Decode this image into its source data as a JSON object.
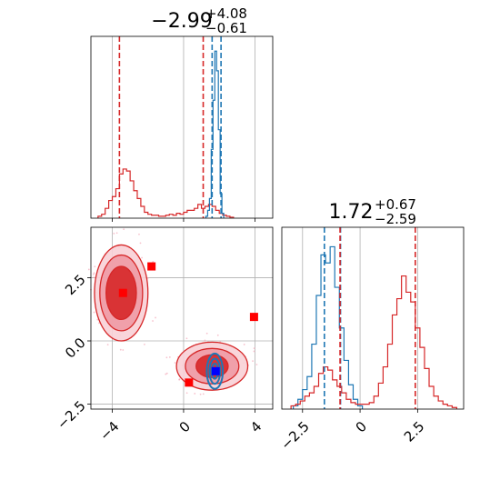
{
  "chart_data": [
    {
      "type": "histogram",
      "panel": "top-left",
      "title_value": "−2.99",
      "title_plus": "+4.08",
      "title_minus": "−0.61",
      "xlim": [
        -5.2,
        5
      ],
      "grid": true,
      "x_ticks": [
        -4,
        0,
        4
      ],
      "series": [
        {
          "color": "#d62728",
          "bins": [
            -4.7,
            -4.5,
            -4.3,
            -4.1,
            -3.9,
            -3.7,
            -3.5,
            -3.3,
            -3.1,
            -2.9,
            -2.7,
            -2.5,
            -2.3,
            -2.1,
            -1.9,
            -1.7,
            -1.5,
            -1.3,
            -1.1,
            -0.9,
            -0.7,
            -0.5,
            -0.3,
            -0.1,
            0.1,
            0.3,
            0.5,
            0.7,
            0.9,
            1.1,
            1.3,
            1.5,
            1.7,
            1.9,
            2.1,
            2.3,
            2.5,
            2.7
          ],
          "values": [
            2,
            4,
            10,
            18,
            22,
            30,
            45,
            50,
            48,
            38,
            28,
            20,
            12,
            6,
            4,
            3,
            3,
            2,
            2,
            3,
            4,
            3,
            5,
            4,
            6,
            8,
            8,
            10,
            14,
            10,
            12,
            14,
            12,
            8,
            5,
            3,
            2,
            1
          ]
        },
        {
          "color": "#1f77b4",
          "bins": [
            1.3,
            1.4,
            1.5,
            1.6,
            1.7,
            1.8,
            1.9,
            2.0,
            2.1,
            2.2
          ],
          "values": [
            2,
            8,
            20,
            70,
            120,
            170,
            150,
            90,
            25,
            5
          ]
        }
      ],
      "quantiles": [
        {
          "color": "#d62728",
          "values": [
            -3.6,
            1.1
          ]
        },
        {
          "color": "#1f77b4",
          "values": [
            1.6,
            2.1
          ]
        }
      ],
      "ylim": [
        0,
        185
      ]
    },
    {
      "type": "scatter-contour",
      "panel": "bottom-left",
      "xlim": [
        -5.2,
        5
      ],
      "ylim": [
        -2.7,
        4.5
      ],
      "x_ticks": [
        -4,
        0,
        4
      ],
      "y_ticks": [
        -2.5,
        0.0,
        2.5
      ],
      "grid": true,
      "contours": [
        {
          "color": "#d62728",
          "center": [
            -3.5,
            1.9
          ],
          "radii": [
            [
              1.5,
              1.9
            ],
            [
              1.2,
              1.5
            ],
            [
              0.85,
              1.05
            ]
          ]
        },
        {
          "color": "#d62728",
          "center": [
            1.6,
            -1.0
          ],
          "radii": [
            [
              2.0,
              0.95
            ],
            [
              1.5,
              0.7
            ],
            [
              0.9,
              0.45
            ]
          ]
        },
        {
          "color": "#1f77b4",
          "center": [
            1.75,
            -1.2
          ],
          "radii": [
            [
              0.45,
              0.7
            ],
            [
              0.3,
              0.5
            ],
            [
              0.18,
              0.3
            ]
          ]
        }
      ],
      "markers": [
        {
          "color": "#ff0000",
          "x": -3.4,
          "y": 1.9
        },
        {
          "color": "#ff0000",
          "x": -1.8,
          "y": 2.95
        },
        {
          "color": "#ff0000",
          "x": 3.95,
          "y": 0.95
        },
        {
          "color": "#ff0000",
          "x": 0.3,
          "y": -1.65
        },
        {
          "color": "#0000ff",
          "x": 1.8,
          "y": -1.2
        }
      ]
    },
    {
      "type": "histogram",
      "panel": "bottom-right",
      "title_value": "1.72",
      "title_plus": "+0.67",
      "title_minus": "−2.59",
      "xlim": [
        -3.4,
        4.5
      ],
      "x_ticks": [
        -2.5,
        0.0,
        2.5
      ],
      "grid": true,
      "series": [
        {
          "color": "#1f77b4",
          "bins": [
            -2.8,
            -2.6,
            -2.4,
            -2.2,
            -2.0,
            -1.8,
            -1.6,
            -1.4,
            -1.2,
            -1.0,
            -0.8,
            -0.6,
            -0.4,
            -0.2,
            0.0
          ],
          "values": [
            2,
            6,
            12,
            20,
            40,
            70,
            95,
            90,
            100,
            75,
            50,
            30,
            15,
            6,
            2
          ]
        },
        {
          "color": "#d62728",
          "bins": [
            -2.9,
            -2.7,
            -2.5,
            -2.3,
            -2.1,
            -1.9,
            -1.7,
            -1.5,
            -1.3,
            -1.1,
            -0.9,
            -0.7,
            -0.5,
            -0.3,
            -0.1,
            0.1,
            0.3,
            0.5,
            0.7,
            0.9,
            1.1,
            1.3,
            1.5,
            1.7,
            1.9,
            2.1,
            2.3,
            2.5,
            2.7,
            2.9,
            3.1,
            3.3,
            3.5,
            3.7,
            3.9,
            4.1
          ],
          "values": [
            2,
            3,
            5,
            8,
            10,
            14,
            22,
            26,
            24,
            18,
            14,
            10,
            6,
            4,
            3,
            3,
            3,
            4,
            8,
            16,
            26,
            40,
            58,
            68,
            82,
            72,
            66,
            50,
            38,
            25,
            14,
            8,
            5,
            3,
            2,
            1
          ]
        }
      ],
      "quantiles": [
        {
          "color": "#1f77b4",
          "values": [
            -1.55,
            -0.85
          ]
        },
        {
          "color": "#d62728",
          "values": [
            -0.87,
            2.4
          ]
        }
      ],
      "ylim": [
        0,
        112
      ]
    }
  ]
}
